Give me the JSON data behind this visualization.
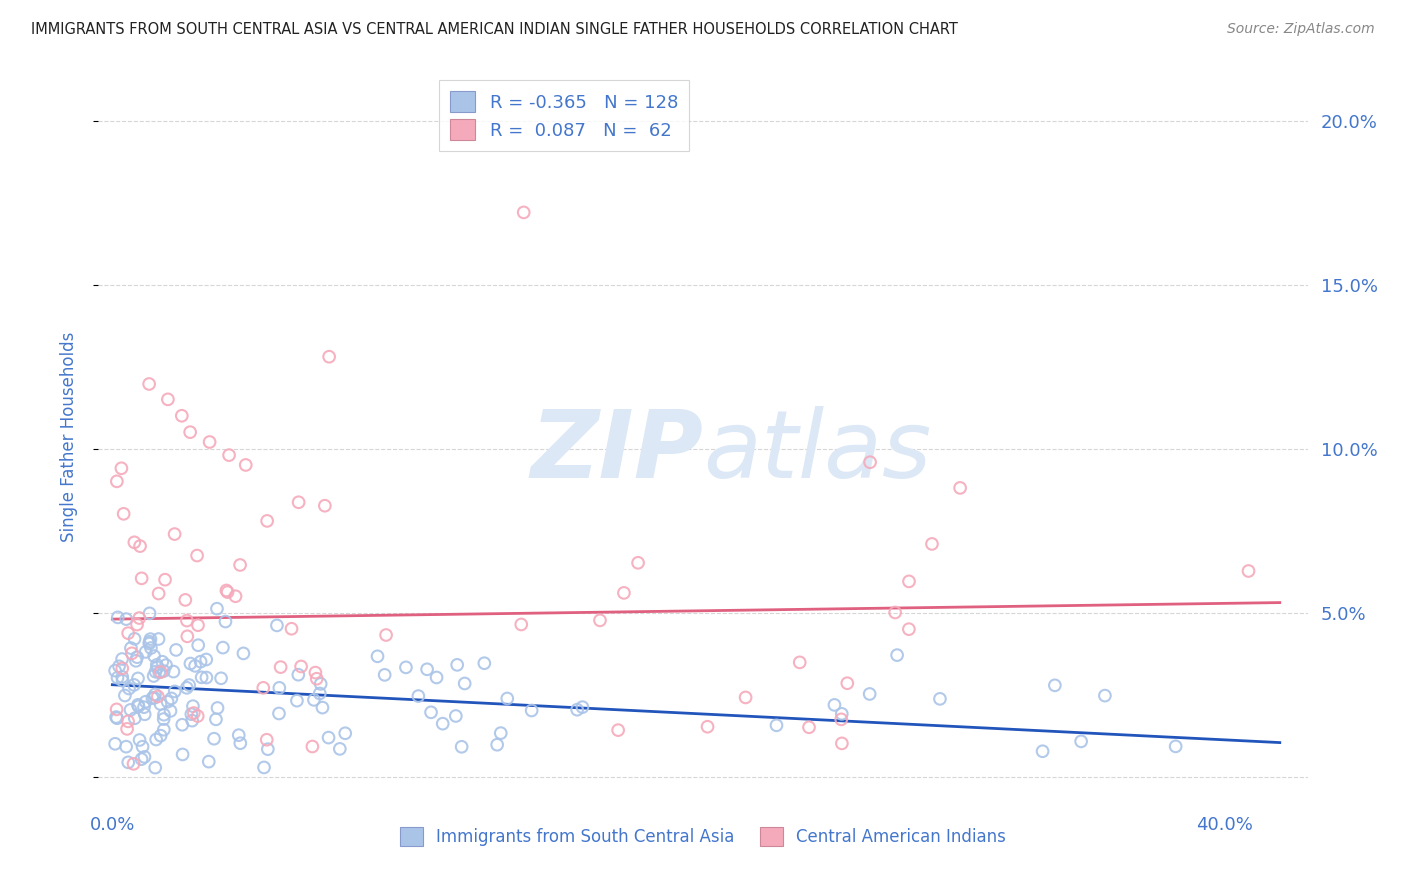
{
  "title": "IMMIGRANTS FROM SOUTH CENTRAL ASIA VS CENTRAL AMERICAN INDIAN SINGLE FATHER HOUSEHOLDS CORRELATION CHART",
  "source": "Source: ZipAtlas.com",
  "ylabel": "Single Father Households",
  "ytick_values": [
    0.0,
    0.05,
    0.1,
    0.15,
    0.2
  ],
  "ytick_right_labels": [
    "",
    "5.0%",
    "10.0%",
    "15.0%",
    "20.0%"
  ],
  "xtick_values": [
    0.0,
    0.1,
    0.2,
    0.3,
    0.4
  ],
  "xtick_labels": [
    "0.0%",
    "",
    "",
    "",
    "40.0%"
  ],
  "xlim": [
    -0.005,
    0.43
  ],
  "ylim": [
    -0.008,
    0.215
  ],
  "legend_blue_label": "Immigrants from South Central Asia",
  "legend_pink_label": "Central American Indians",
  "R_blue": -0.365,
  "N_blue": 128,
  "R_pink": 0.087,
  "N_pink": 62,
  "blue_dot_color": "#aac4e8",
  "pink_dot_color": "#f5aabb",
  "blue_line_color": "#2255bb",
  "pink_line_color": "#e06080",
  "title_color": "#222222",
  "axis_label_color": "#4477cc",
  "watermark_color": "#dce8f5",
  "background_color": "#ffffff",
  "grid_color": "#cccccc",
  "blue_intercept": 0.028,
  "blue_slope": -0.042,
  "pink_intercept": 0.048,
  "pink_slope": 0.012
}
